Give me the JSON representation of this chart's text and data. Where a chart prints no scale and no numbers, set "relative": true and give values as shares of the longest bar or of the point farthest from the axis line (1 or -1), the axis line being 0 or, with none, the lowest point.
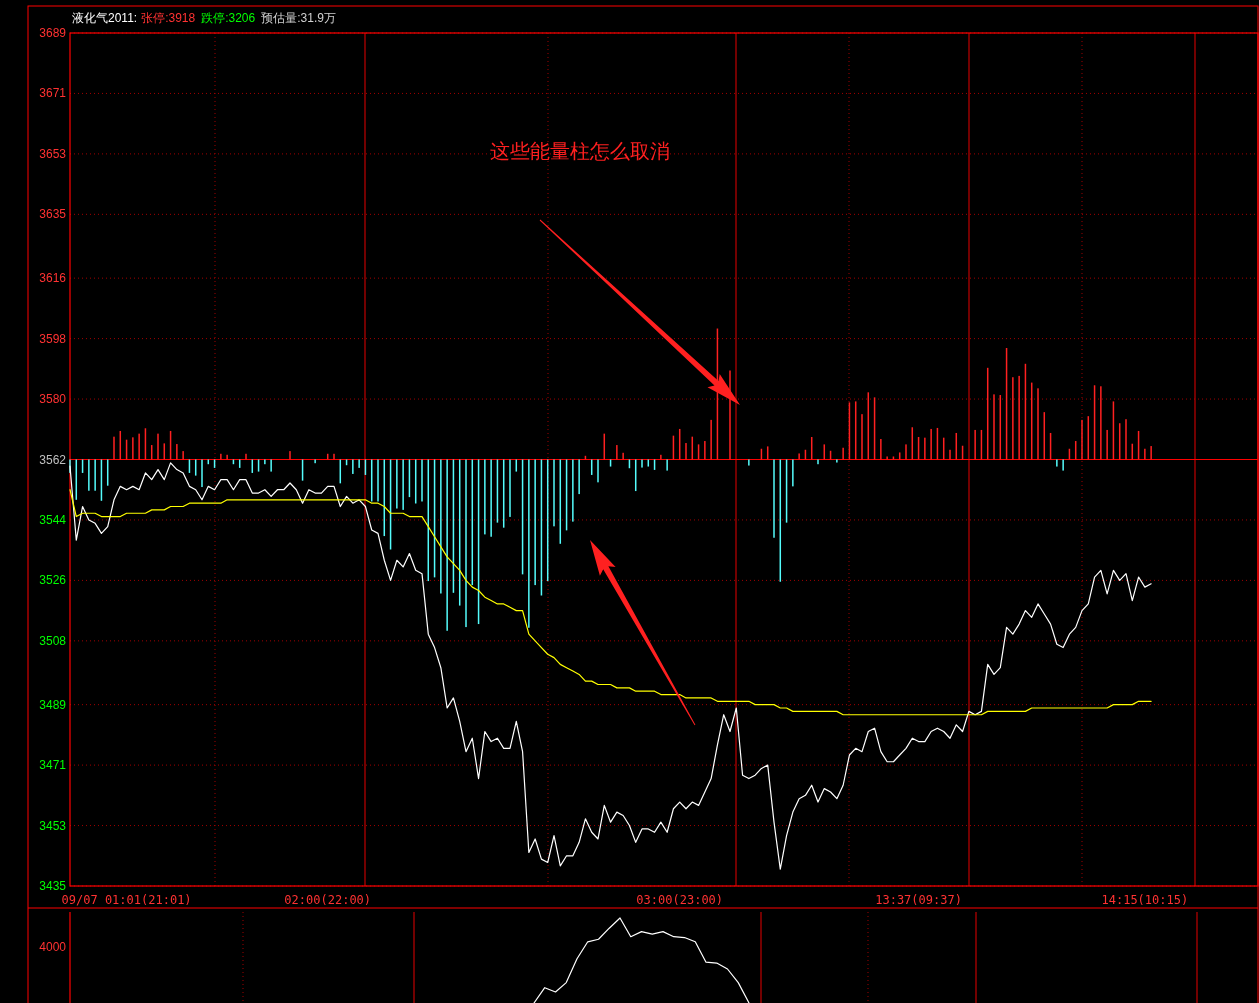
{
  "chart_data": [
    {
      "type": "line",
      "title": "液化气2011:",
      "annotations": [
        "张停:3918",
        "跌停:3206",
        "预估量:31.9万",
        "这些能量柱怎么取消"
      ],
      "categories": [
        null,
        null,
        null,
        null,
        null,
        null,
        null,
        null,
        null,
        "09/07 01:01(21:01)",
        null,
        null,
        null,
        null,
        null,
        null,
        null,
        null,
        null,
        null,
        null,
        null,
        null,
        null,
        null,
        null,
        null,
        null,
        null,
        null,
        null,
        null,
        null,
        null,
        null,
        null,
        null,
        null,
        null,
        null,
        null,
        "02:00(22:00)",
        null,
        null,
        null,
        null,
        null,
        null,
        null,
        null,
        null,
        null,
        null,
        null,
        null,
        null,
        null,
        null,
        null,
        null,
        null,
        null,
        null,
        null,
        null,
        null,
        null,
        null,
        null,
        null,
        null,
        null,
        null,
        null,
        null,
        null,
        null,
        null,
        null,
        null,
        null,
        null,
        null,
        null,
        null,
        null,
        null,
        null,
        null,
        null,
        null,
        null,
        null,
        null,
        null,
        null,
        null,
        "03:00(23:00)",
        null,
        null,
        null,
        null,
        null,
        null,
        null,
        null,
        null,
        null,
        null,
        null,
        null,
        null,
        null,
        null,
        null,
        null,
        null,
        null,
        null,
        null,
        null,
        null,
        null,
        null,
        null,
        null,
        null,
        null,
        null,
        null,
        null,
        null,
        null,
        null,
        null,
        "13:37(09:37)",
        null,
        null,
        null,
        null,
        null,
        null,
        null,
        null,
        null,
        null,
        null,
        null,
        null,
        null,
        null,
        null,
        null,
        null,
        null,
        null,
        null,
        null,
        null,
        null,
        null,
        null,
        null,
        null,
        null,
        null,
        null,
        null,
        null,
        null,
        null,
        "14:15(10:15)",
        null,
        null,
        null,
        null,
        null,
        null,
        null,
        null,
        null,
        null,
        null,
        null,
        null,
        null,
        null,
        null,
        null
      ],
      "ylim": [
        3435,
        3689
      ],
      "yticks": [
        3435,
        3453,
        3471,
        3489,
        3508,
        3526,
        3544,
        3562,
        3580,
        3598,
        3616,
        3635,
        3653,
        3671,
        3689
      ],
      "grid": "y",
      "ref_lines": [
        {
          "axis": "y",
          "value": 3562,
          "color": "#ff0000",
          "line_style": "solid"
        }
      ],
      "series": [
        {
          "type": "bar",
          "colors": [
            "#54fcfc",
            "#54fcfc",
            "#54fcfc",
            "#54fcfc",
            "#54fcfc",
            "#54fcfc",
            "#54fcfc",
            "#ff2020",
            "#ff2020",
            "#ff2020",
            "#ff2020",
            "#ff2020",
            "#ff2020",
            "#ff2020",
            "#ff2020",
            "#ff2020",
            "#ff2020",
            "#ff2020",
            "#ff2020",
            "#54fcfc",
            "#54fcfc",
            "#54fcfc",
            "#54fcfc",
            "#54fcfc",
            "#ff2020",
            "#ff2020",
            "#54fcfc",
            "#54fcfc",
            "#ff2020",
            "#54fcfc",
            "#54fcfc",
            "#54fcfc",
            "#54fcfc",
            null,
            null,
            "#ff2020",
            null,
            "#54fcfc",
            null,
            "#54fcfc",
            null,
            "#ff2020",
            "#ff2020",
            "#54fcfc",
            "#54fcfc",
            "#54fcfc",
            "#54fcfc",
            "#54fcfc",
            "#54fcfc",
            "#54fcfc",
            "#54fcfc",
            "#54fcfc",
            "#54fcfc",
            "#54fcfc",
            "#54fcfc",
            "#54fcfc",
            "#54fcfc",
            "#54fcfc",
            "#54fcfc",
            "#54fcfc",
            "#54fcfc",
            "#54fcfc",
            "#54fcfc",
            "#54fcfc",
            "#54fcfc",
            "#54fcfc",
            "#54fcfc",
            "#54fcfc",
            "#54fcfc",
            "#54fcfc",
            "#54fcfc",
            "#54fcfc",
            "#54fcfc",
            "#54fcfc",
            "#54fcfc",
            "#54fcfc",
            "#54fcfc",
            "#54fcfc",
            "#54fcfc",
            "#54fcfc",
            "#54fcfc",
            "#54fcfc",
            "#ff2020",
            "#54fcfc",
            "#54fcfc",
            "#ff2020",
            "#54fcfc",
            "#ff2020",
            "#ff2020",
            "#54fcfc",
            "#54fcfc",
            "#54fcfc",
            "#54fcfc",
            "#54fcfc",
            "#ff2020",
            "#54fcfc",
            "#ff2020",
            "#ff2020",
            "#ff2020",
            "#ff2020",
            "#ff2020",
            "#ff2020",
            "#ff2020",
            "#ff2020",
            null,
            "#ff2020",
            null,
            null,
            "#54fcfc",
            null,
            "#ff2020",
            "#ff2020",
            "#54fcfc",
            "#54fcfc",
            "#54fcfc",
            "#54fcfc",
            "#ff2020",
            "#ff2020",
            "#ff2020",
            "#54fcfc",
            "#ff2020",
            "#ff2020",
            "#54fcfc",
            "#ff2020",
            "#ff2020",
            "#ff2020",
            "#ff2020",
            "#ff2020",
            "#ff2020",
            "#ff2020",
            "#ff2020",
            "#ff2020",
            "#ff2020",
            "#ff2020",
            "#ff2020",
            "#ff2020",
            "#ff2020",
            "#ff2020",
            "#ff2020",
            "#ff2020",
            "#ff2020",
            "#ff2020",
            "#ff2020",
            null,
            "#ff2020",
            "#ff2020",
            "#ff2020",
            "#ff2020",
            "#ff2020",
            "#ff2020",
            "#ff2020",
            "#ff2020",
            "#ff2020",
            "#ff2020",
            "#ff2020",
            "#ff2020",
            "#ff2020",
            "#54fcfc",
            "#54fcfc",
            "#ff2020",
            "#ff2020",
            "#ff2020",
            "#ff2020",
            "#ff2020",
            "#ff2020",
            "#ff2020",
            "#ff2020",
            "#ff2020",
            "#ff2020",
            "#ff2020",
            "#ff2020",
            "#ff2020",
            "#ff2020",
            null,
            null,
            null,
            null,
            null,
            null,
            null,
            null,
            null,
            null,
            null,
            null,
            null,
            null,
            null,
            null
          ],
          "base": [
            3562,
            3562,
            3562,
            3562,
            3562,
            3562,
            3562,
            3562,
            3562,
            3562,
            3562,
            3562,
            3562,
            3562,
            3562,
            3562,
            3562,
            3562,
            3562,
            3562,
            3562,
            3562,
            3562,
            3562,
            3562,
            3562,
            3562,
            3562,
            3562,
            3562,
            3562,
            3562,
            3562,
            null,
            null,
            3562,
            null,
            3562,
            null,
            3562,
            null,
            3562,
            3562,
            3562,
            3562,
            3562,
            3562,
            3562,
            3562,
            3562,
            3562,
            3562,
            3562,
            3562,
            3562,
            3562,
            3562,
            3562,
            3562,
            3562,
            3562,
            3562,
            3562,
            3562,
            3562,
            3562,
            3562,
            3562,
            3562,
            3562,
            3562,
            3562,
            3562,
            3562,
            3562,
            3562,
            3562,
            3562,
            3562,
            3562,
            3562,
            3562,
            3562,
            3562,
            3562,
            3562,
            3562,
            3562,
            3562,
            3562,
            3562,
            3562,
            3562,
            3562,
            3562,
            3562,
            3562,
            3562,
            3562,
            3562,
            3562,
            3562,
            3562,
            3562,
            null,
            3562,
            null,
            null,
            3562,
            null,
            3562,
            3562,
            3562,
            3562,
            3562,
            3562,
            3562,
            3562,
            3562,
            3562,
            3562,
            3562,
            3562,
            3562,
            3562,
            3562,
            3562,
            3562,
            3562,
            3562,
            3562,
            3562,
            3562,
            3562,
            3562,
            3562,
            3562,
            3562,
            3562,
            3562,
            3562,
            3562,
            3562,
            null,
            3562,
            3562,
            3562,
            3562,
            3562,
            3562,
            3562,
            3562,
            3562,
            3562,
            3562,
            3562,
            3562,
            3562,
            3562,
            3562,
            3562,
            3562,
            3562,
            3562,
            3562,
            3562,
            3562,
            3562,
            3562,
            3562,
            3562,
            3562,
            3562,
            null,
            null,
            null,
            null,
            null,
            null,
            null,
            null,
            null,
            null,
            null,
            null,
            null,
            null,
            null,
            null
          ],
          "values": [
            -4.0,
            -12.0,
            -4.0,
            -9.3,
            -9.3,
            -12.3,
            -7.8,
            6.8,
            8.5,
            5.9,
            6.6,
            7.7,
            9.3,
            4.3,
            7.7,
            4.8,
            8.5,
            4.6,
            2.5,
            -4.0,
            -4.8,
            -8.2,
            -1.4,
            -2.5,
            1.7,
            1.4,
            -1.4,
            -2.5,
            1.7,
            -4.0,
            -3.6,
            -1.4,
            -3.6,
            null,
            null,
            2.5,
            null,
            -6.3,
            null,
            -1.1,
            null,
            1.7,
            1.7,
            -7.1,
            -1.7,
            -4.3,
            -2.5,
            -4.6,
            -12.5,
            -12.5,
            -22.8,
            -26.8,
            -14.6,
            -15.0,
            -11.2,
            -13.1,
            -12.5,
            -36.2,
            -35.1,
            -39.9,
            -51.0,
            -39.7,
            -43.5,
            -49.9,
            -37.4,
            -49.0,
            -22.3,
            -23.0,
            -18.8,
            -20.3,
            -17.1,
            -3.6,
            -34.2,
            -50.1,
            -37.4,
            -40.5,
            -36.2,
            -19.9,
            -25.1,
            -21.1,
            -18.5,
            -10.3,
            1.1,
            -4.6,
            -6.8,
            7.7,
            -2.1,
            4.3,
            2.0,
            -2.6,
            -9.4,
            -2.4,
            -2.1,
            -3.1,
            1.4,
            -3.3,
            7.1,
            9.1,
            4.9,
            6.8,
            4.5,
            5.5,
            11.8,
            39.0,
            null,
            26.5,
            null,
            null,
            -1.8,
            null,
            3.2,
            3.9,
            -23.3,
            -36.4,
            -18.8,
            -8.0,
            1.8,
            2.9,
            6.7,
            -1.4,
            4.5,
            2.6,
            -0.9,
            3.5,
            17.0,
            17.3,
            13.5,
            20.0,
            18.5,
            6.1,
            0.9,
            0.9,
            2.1,
            4.5,
            9.6,
            6.7,
            6.5,
            9.1,
            9.4,
            6.5,
            2.9,
            7.9,
            4.1,
            null,
            8.8,
            8.8,
            27.3,
            19.4,
            19.2,
            33.2,
            24.5,
            24.9,
            28.5,
            22.9,
            21.2,
            14.1,
            7.9,
            -2.1,
            -3.3,
            3.2,
            5.5,
            11.8,
            12.9,
            22.1,
            21.8,
            8.8,
            17.3,
            10.8,
            12.0,
            4.7,
            8.5,
            3.2,
            4.0,
            null,
            null,
            null,
            null,
            null,
            null,
            null,
            null,
            null,
            null,
            null,
            null,
            null,
            null,
            null,
            null
          ]
        },
        {
          "color": "#ffffff",
          "values": [
            3560,
            3538,
            3548,
            3544,
            3543,
            3540,
            3542,
            3550,
            3554,
            3553,
            3554,
            3553,
            3558,
            3556,
            3559,
            3556,
            3561,
            3559,
            3558,
            3554,
            3553,
            3550,
            3554,
            3553,
            3556,
            3556,
            3553,
            3556,
            3556,
            3552,
            3552,
            3553,
            3551,
            3553,
            3553,
            3555,
            3553,
            3549,
            3553,
            3552,
            3552,
            3554,
            3554,
            3548,
            3551,
            3549,
            3550,
            3548,
            3541,
            3540,
            3532,
            3526,
            3532,
            3530,
            3534,
            3529,
            3528,
            3510,
            3506,
            3500,
            3488,
            3491,
            3484,
            3475,
            3479,
            3467,
            3481,
            3478,
            3479,
            3476,
            3476,
            3484,
            3475,
            3445,
            3449,
            3443,
            3442,
            3450,
            3441,
            3444,
            3444,
            3448,
            3455,
            3451,
            3449,
            3459,
            3454,
            3457,
            3456,
            3453,
            3448,
            3452,
            3452,
            3451,
            3454,
            3451,
            3458,
            3460,
            3458,
            3460,
            3459,
            3463,
            3467,
            3477,
            3486,
            3481,
            3488,
            3468,
            3467,
            3468,
            3470,
            3471,
            3454,
            3440,
            3450,
            3457,
            3461,
            3462,
            3465,
            3460,
            3464,
            3463,
            3461,
            3465,
            3474,
            3476,
            3475,
            3481,
            3482,
            3475,
            3472,
            3472,
            3474,
            3476,
            3479,
            3478,
            3478,
            3481,
            3482,
            3481,
            3479,
            3483,
            3481,
            3487,
            3486,
            3487,
            3501,
            3498,
            3500,
            3512,
            3510,
            3513,
            3517,
            3515,
            3519,
            3516,
            3513,
            3507,
            3506,
            3510,
            3512,
            3517,
            3519,
            3527,
            3529,
            3522,
            3529,
            3526,
            3528,
            3520,
            3527,
            3524,
            3525,
            null,
            null,
            null,
            null,
            null,
            null,
            null,
            null,
            null,
            null,
            null,
            null,
            null,
            null,
            null,
            null
          ]
        },
        {
          "color": "#ffff00",
          "values": [
            3553,
            3545,
            3546,
            3546,
            3546,
            3545,
            3545,
            3545,
            3545,
            3546,
            3546,
            3546,
            3546,
            3547,
            3547,
            3547,
            3548,
            3548,
            3548,
            3549,
            3549,
            3549,
            3549,
            3549,
            3549,
            3550,
            3550,
            3550,
            3550,
            3550,
            3550,
            3550,
            3550,
            3550,
            3550,
            3550,
            3550,
            3550,
            3550,
            3550,
            3550,
            3550,
            3550,
            3550,
            3550,
            3550,
            3550,
            3550,
            3549,
            3549,
            3548,
            3546,
            3546,
            3546,
            3545,
            3545,
            3545,
            3542,
            3539,
            3536,
            3533,
            3531,
            3529,
            3526,
            3524,
            3523,
            3521,
            3520,
            3519,
            3519,
            3518,
            3517,
            3517,
            3510,
            3508,
            3506,
            3504,
            3503,
            3501,
            3500,
            3499,
            3498,
            3496,
            3496,
            3495,
            3495,
            3495,
            3494,
            3494,
            3494,
            3493,
            3493,
            3493,
            3493,
            3492,
            3492,
            3492,
            3492,
            3491,
            3491,
            3491,
            3491,
            3491,
            3490,
            3490,
            3490,
            3490,
            3490,
            3490,
            3489,
            3489,
            3489,
            3489,
            3488,
            3488,
            3487,
            3487,
            3487,
            3487,
            3487,
            3487,
            3487,
            3487,
            3486,
            3486,
            3486,
            3486,
            3486,
            3486,
            3486,
            3486,
            3486,
            3486,
            3486,
            3486,
            3486,
            3486,
            3486,
            3486,
            3486,
            3486,
            3486,
            3486,
            3486,
            3486,
            3486,
            3487,
            3487,
            3487,
            3487,
            3487,
            3487,
            3487,
            3488,
            3488,
            3488,
            3488,
            3488,
            3488,
            3488,
            3488,
            3488,
            3488,
            3488,
            3488,
            3488,
            3489,
            3489,
            3489,
            3489,
            3490,
            3490,
            3490,
            null,
            null,
            null,
            null,
            null,
            null,
            null,
            null,
            null,
            null,
            null,
            null,
            null,
            null,
            null,
            null
          ]
        }
      ]
    },
    {
      "type": "line",
      "relative": true,
      "annotations": [
        "4000"
      ],
      "categories": [
        null,
        null,
        null,
        null,
        null,
        null,
        null,
        null,
        null,
        null,
        null,
        null,
        null,
        null,
        null,
        null,
        null,
        null,
        null,
        null,
        null
      ],
      "series": [
        {
          "color": "#ffffff",
          "values": [
            0,
            0.18,
            0.13,
            0.24,
            0.52,
            0.72,
            0.75,
            0.88,
            1,
            0.78,
            0.84,
            0.81,
            0.84,
            0.78,
            0.77,
            0.72,
            0.48,
            0.47,
            0.4,
            0.24,
            0
          ]
        }
      ]
    }
  ]
}
